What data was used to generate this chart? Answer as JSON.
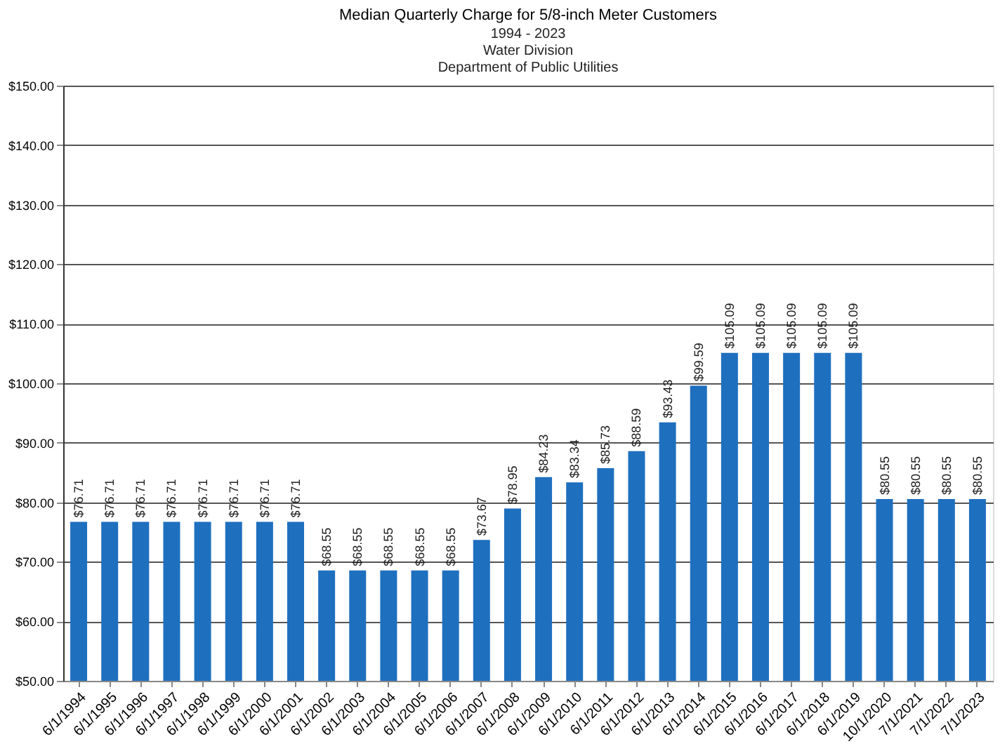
{
  "chart_data": {
    "type": "bar",
    "title": "Median Quarterly Charge for 5/8-inch Meter Customers",
    "subtitle": "1994 - 2023\nWater Division\nDepartment of Public Utilities",
    "categories": [
      "6/1/1994",
      "6/1/1995",
      "6/1/1996",
      "6/1/1997",
      "6/1/1998",
      "6/1/1999",
      "6/1/2000",
      "6/1/2001",
      "6/1/2002",
      "6/1/2003",
      "6/1/2004",
      "6/1/2005",
      "6/1/2006",
      "6/1/2007",
      "6/1/2008",
      "6/1/2009",
      "6/1/2010",
      "6/1/2011",
      "6/1/2012",
      "6/1/2013",
      "6/1/2014",
      "6/1/2015",
      "6/1/2016",
      "6/1/2017",
      "6/1/2018",
      "6/1/2019",
      "10/1/2020",
      "7/1/2021",
      "7/1/2022",
      "7/1/2023"
    ],
    "values": [
      76.71,
      76.71,
      76.71,
      76.71,
      76.71,
      76.71,
      76.71,
      76.71,
      68.55,
      68.55,
      68.55,
      68.55,
      68.55,
      73.67,
      78.95,
      84.23,
      83.34,
      85.73,
      88.59,
      93.43,
      99.59,
      105.09,
      105.09,
      105.09,
      105.09,
      105.09,
      80.55,
      80.55,
      80.55,
      80.55
    ],
    "value_labels": [
      "$76.71",
      "$76.71",
      "$76.71",
      "$76.71",
      "$76.71",
      "$76.71",
      "$76.71",
      "$76.71",
      "$68.55",
      "$68.55",
      "$68.55",
      "$68.55",
      "$68.55",
      "$73.67",
      "$78.95",
      "$84.23",
      "$83.34",
      "$85.73",
      "$88.59",
      "$93.43",
      "$99.59",
      "$105.09",
      "$105.09",
      "$105.09",
      "$105.09",
      "$105.09",
      "$80.55",
      "$80.55",
      "$80.55",
      "$80.55"
    ],
    "color": "#1f6fbf",
    "ylim": [
      50,
      150
    ],
    "yticks": [
      {
        "value": 50,
        "label": "$50.00"
      },
      {
        "value": 60,
        "label": "$60.00"
      },
      {
        "value": 70,
        "label": "$70.00"
      },
      {
        "value": 80,
        "label": "$80.00"
      },
      {
        "value": 90,
        "label": "$90.00"
      },
      {
        "value": 100,
        "label": "$100.00"
      },
      {
        "value": 110,
        "label": "$110.00"
      },
      {
        "value": 120,
        "label": "$120.00"
      },
      {
        "value": 130,
        "label": "$130.00"
      },
      {
        "value": 140,
        "label": "$140.00"
      },
      {
        "value": 150,
        "label": "$150.00"
      }
    ],
    "grid": "y"
  }
}
